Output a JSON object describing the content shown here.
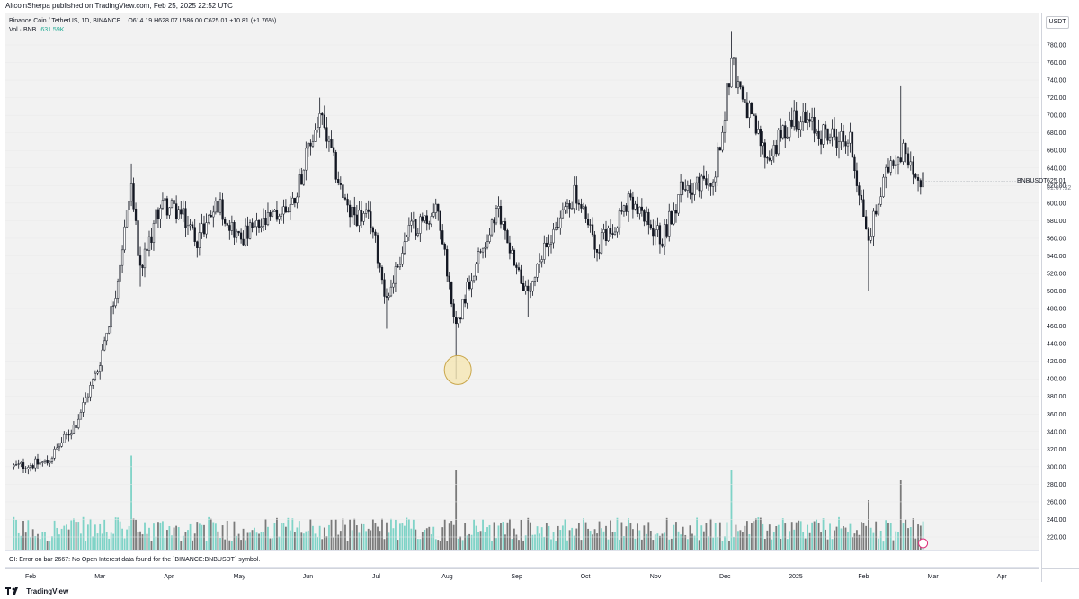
{
  "header": {
    "publish_line": "AltcoinSherpa published on TradingView.com, Feb 25, 2025 22:52 UTC"
  },
  "legend": {
    "symbol": "Binance Coin / TetherUS, 1D, BINANCE",
    "ohlc": "O614.19  H628.07  L586.00  C625.01  +10.81 (+1.76%)",
    "vol_label": "Vol · BNB",
    "vol_value": "631.59K"
  },
  "price_axis": {
    "currency": "USDT",
    "symbol_label": "BNBUSDT",
    "last_price": "625.01",
    "countdown": "01:07:52"
  },
  "error_message": "OI: Error on bar 2667: No Open Interest data found for the `BINANCE:BNBUSDT` symbol.",
  "footer": {
    "brand": "TradingView"
  },
  "colors": {
    "up": "#22ab94",
    "down": "#131722",
    "vol_up": "#7fd3c7",
    "vol_down": "#7a7a7a",
    "marker_fill": "#f5e6b3",
    "marker_stroke": "#c9a64a"
  },
  "chart_data": {
    "type": "candlestick",
    "interval": "1D",
    "y_scale": "linear",
    "ylim": [
      210,
      800
    ],
    "y_ticks": [
      220,
      240,
      260,
      280,
      300,
      320,
      340,
      360,
      380,
      400,
      420,
      440,
      460,
      480,
      500,
      520,
      540,
      560,
      580,
      600,
      620,
      640,
      660,
      680,
      700,
      720,
      740,
      760,
      780
    ],
    "x_tick_labels": [
      "Feb",
      "Mar",
      "Apr",
      "May",
      "Jun",
      "Jul",
      "Aug",
      "Sep",
      "Oct",
      "Nov",
      "Dec",
      "2025",
      "Feb",
      "Mar",
      "Apr"
    ],
    "x_tick_dates": [
      "2024-02-01",
      "2024-03-01",
      "2024-04-01",
      "2024-05-01",
      "2024-06-01",
      "2024-07-01",
      "2024-08-01",
      "2024-09-01",
      "2024-10-01",
      "2024-11-01",
      "2024-12-01",
      "2025-01-01",
      "2025-02-01",
      "2025-03-01",
      "2025-04-01"
    ],
    "price_path": [
      {
        "date": "2024-01-25",
        "close": 300
      },
      {
        "date": "2024-02-08",
        "close": 305
      },
      {
        "date": "2024-02-20",
        "close": 350
      },
      {
        "date": "2024-02-29",
        "close": 410
      },
      {
        "date": "2024-03-08",
        "close": 500
      },
      {
        "date": "2024-03-15",
        "close": 620
      },
      {
        "date": "2024-03-19",
        "close": 520
      },
      {
        "date": "2024-03-28",
        "close": 600
      },
      {
        "date": "2024-04-05",
        "close": 590
      },
      {
        "date": "2024-04-13",
        "close": 560
      },
      {
        "date": "2024-04-22",
        "close": 600
      },
      {
        "date": "2024-05-01",
        "close": 560
      },
      {
        "date": "2024-05-15",
        "close": 580
      },
      {
        "date": "2024-05-25",
        "close": 600
      },
      {
        "date": "2024-06-06",
        "close": 700
      },
      {
        "date": "2024-06-18",
        "close": 590
      },
      {
        "date": "2024-06-28",
        "close": 580
      },
      {
        "date": "2024-07-05",
        "close": 490
      },
      {
        "date": "2024-07-15",
        "close": 570
      },
      {
        "date": "2024-07-28",
        "close": 590
      },
      {
        "date": "2024-08-05",
        "close": 460
      },
      {
        "date": "2024-08-12",
        "close": 520
      },
      {
        "date": "2024-08-24",
        "close": 590
      },
      {
        "date": "2024-09-06",
        "close": 490
      },
      {
        "date": "2024-09-15",
        "close": 560
      },
      {
        "date": "2024-09-26",
        "close": 610
      },
      {
        "date": "2024-10-06",
        "close": 550
      },
      {
        "date": "2024-10-20",
        "close": 600
      },
      {
        "date": "2024-11-04",
        "close": 560
      },
      {
        "date": "2024-11-13",
        "close": 620
      },
      {
        "date": "2024-11-26",
        "close": 620
      },
      {
        "date": "2024-12-04",
        "close": 760
      },
      {
        "date": "2024-12-12",
        "close": 700
      },
      {
        "date": "2024-12-20",
        "close": 650
      },
      {
        "date": "2025-01-01",
        "close": 700
      },
      {
        "date": "2025-01-13",
        "close": 680
      },
      {
        "date": "2025-01-26",
        "close": 670
      },
      {
        "date": "2025-02-03",
        "close": 560
      },
      {
        "date": "2025-02-12",
        "close": 650
      },
      {
        "date": "2025-02-18",
        "close": 660
      },
      {
        "date": "2025-02-25",
        "close": 625
      }
    ],
    "notable_highs": [
      {
        "date": "2024-03-15",
        "high": 645
      },
      {
        "date": "2024-06-06",
        "high": 720
      },
      {
        "date": "2024-12-04",
        "high": 795
      },
      {
        "date": "2025-02-16",
        "high": 733
      }
    ],
    "notable_lows": [
      {
        "date": "2024-03-19",
        "low": 505
      },
      {
        "date": "2024-07-05",
        "low": 457
      },
      {
        "date": "2024-08-05",
        "low": 400
      },
      {
        "date": "2024-09-06",
        "low": 470
      },
      {
        "date": "2025-02-03",
        "low": 500
      }
    ],
    "annotation": {
      "type": "circle-marker",
      "date": "2024-08-05",
      "price": 410
    },
    "volume_spikes": [
      {
        "date": "2024-03-15",
        "relative": 0.95
      },
      {
        "date": "2024-08-05",
        "relative": 0.8
      },
      {
        "date": "2024-12-04",
        "relative": 0.8
      },
      {
        "date": "2025-02-03",
        "relative": 0.5
      },
      {
        "date": "2025-02-16",
        "relative": 0.7
      }
    ]
  }
}
